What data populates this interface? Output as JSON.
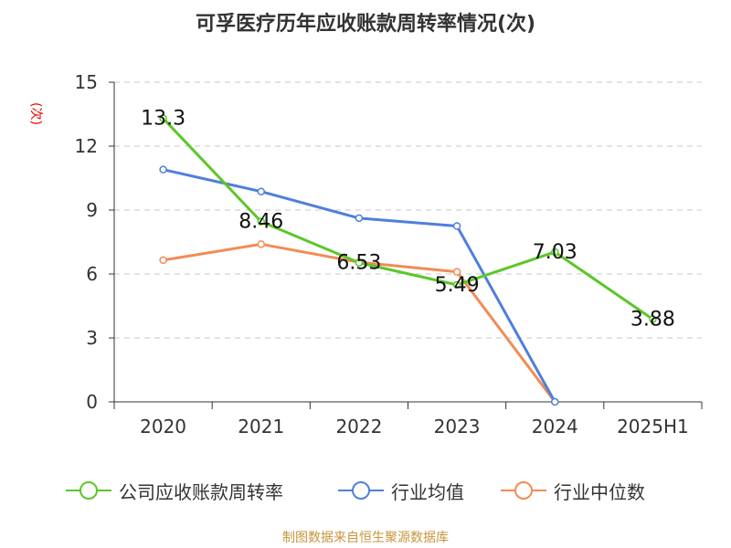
{
  "title": "可孚医疗历年应收账款周转率情况(次)",
  "ylabel": "(次)",
  "source": "制图数据来自恒生聚源数据库",
  "chart_data": {
    "type": "line",
    "title": "可孚医疗历年应收账款周转率情况(次)",
    "ylabel": "(次)",
    "xlabel": "",
    "categories": [
      "2020",
      "2021",
      "2022",
      "2023",
      "2024",
      "2025H1"
    ],
    "ylim": [
      0,
      15
    ],
    "yticks": [
      0,
      3,
      6,
      9,
      12,
      15
    ],
    "grid": "horizontal dashed",
    "legend_position": "bottom",
    "series": [
      {
        "name": "公司应收账款周转率",
        "color": "#5cc72a",
        "values": [
          13.3,
          8.46,
          6.53,
          5.49,
          7.03,
          3.88
        ],
        "labels": [
          "13.3",
          "8.46",
          "6.53",
          "5.49",
          "7.03",
          "3.88"
        ]
      },
      {
        "name": "行业均值",
        "color": "#4f7fdc",
        "values": [
          10.9,
          9.87,
          8.62,
          8.25,
          0,
          null
        ]
      },
      {
        "name": "行业中位数",
        "color": "#f28c54",
        "values": [
          6.65,
          7.4,
          6.55,
          6.1,
          0,
          null
        ]
      }
    ]
  }
}
